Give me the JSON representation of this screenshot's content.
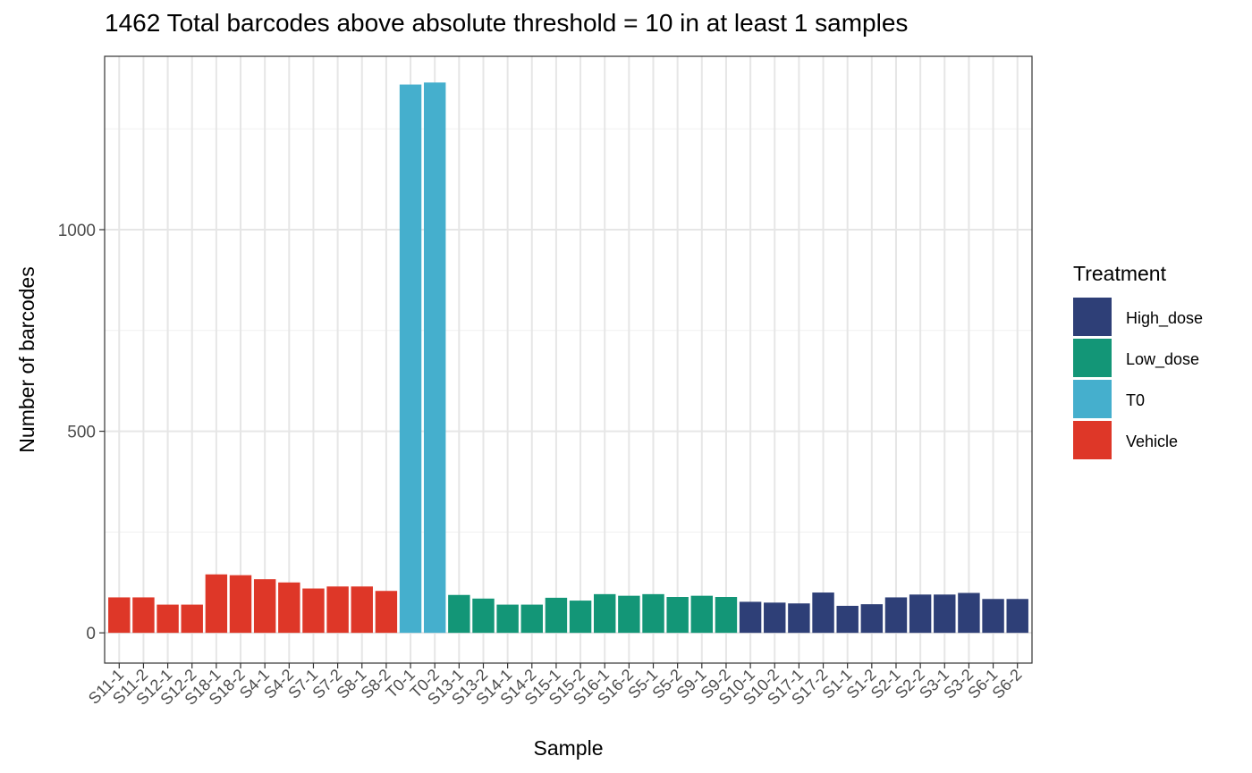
{
  "chart_data": {
    "type": "bar",
    "title": "1462 Total barcodes above absolute threshold = 10 in at least 1 samples",
    "xlabel": "Sample",
    "ylabel": "Number of barcodes",
    "ylim": [
      -75,
      1430
    ],
    "yticks": [
      0,
      500,
      1000
    ],
    "grid": true,
    "legend": {
      "title": "Treatment",
      "placement": "right",
      "entries": [
        {
          "name": "High_dose",
          "color": "#2e3f77"
        },
        {
          "name": "Low_dose",
          "color": "#139677"
        },
        {
          "name": "T0",
          "color": "#45afcd"
        },
        {
          "name": "Vehicle",
          "color": "#de3728"
        }
      ]
    },
    "categories": [
      "S11-1",
      "S11-2",
      "S12-1",
      "S12-2",
      "S18-1",
      "S18-2",
      "S4-1",
      "S4-2",
      "S7-1",
      "S7-2",
      "S8-1",
      "S8-2",
      "T0-1",
      "T0-2",
      "S13-1",
      "S13-2",
      "S14-1",
      "S14-2",
      "S15-1",
      "S15-2",
      "S16-1",
      "S16-2",
      "S5-1",
      "S5-2",
      "S9-1",
      "S9-2",
      "S10-1",
      "S10-2",
      "S17-1",
      "S17-2",
      "S1-1",
      "S1-2",
      "S2-1",
      "S2-2",
      "S3-1",
      "S3-2",
      "S6-1",
      "S6-2"
    ],
    "values": [
      88,
      88,
      70,
      70,
      145,
      143,
      133,
      125,
      110,
      115,
      115,
      104,
      1360,
      1365,
      94,
      85,
      70,
      70,
      87,
      80,
      96,
      92,
      96,
      89,
      92,
      89,
      77,
      75,
      73,
      100,
      67,
      71,
      88,
      95,
      95,
      99,
      84,
      84
    ],
    "groups": [
      "Vehicle",
      "Vehicle",
      "Vehicle",
      "Vehicle",
      "Vehicle",
      "Vehicle",
      "Vehicle",
      "Vehicle",
      "Vehicle",
      "Vehicle",
      "Vehicle",
      "Vehicle",
      "T0",
      "T0",
      "Low_dose",
      "Low_dose",
      "Low_dose",
      "Low_dose",
      "Low_dose",
      "Low_dose",
      "Low_dose",
      "Low_dose",
      "Low_dose",
      "Low_dose",
      "Low_dose",
      "Low_dose",
      "High_dose",
      "High_dose",
      "High_dose",
      "High_dose",
      "High_dose",
      "High_dose",
      "High_dose",
      "High_dose",
      "High_dose",
      "High_dose",
      "High_dose",
      "High_dose"
    ]
  }
}
